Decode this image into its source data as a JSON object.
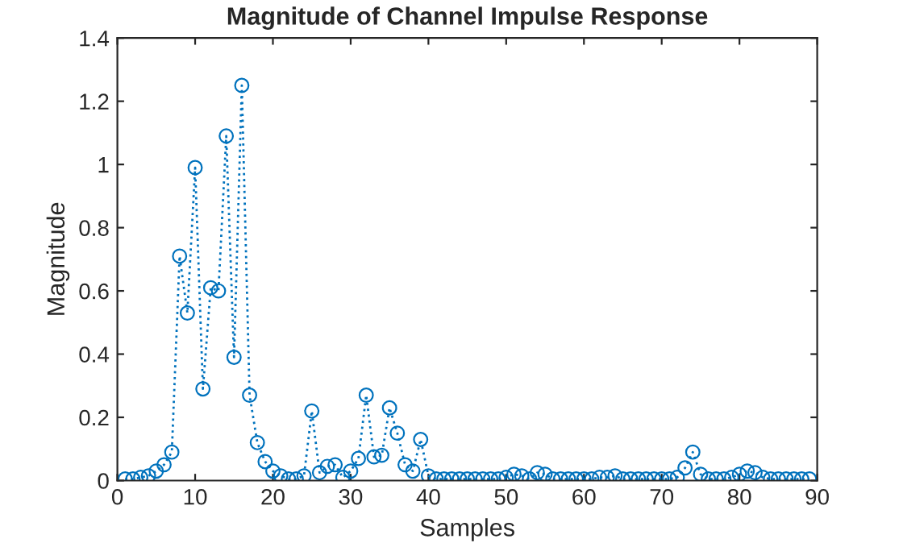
{
  "chart_data": {
    "type": "line",
    "title": "Magnitude of Channel Impulse Response",
    "xlabel": "Samples",
    "ylabel": "Magnitude",
    "x": [
      1,
      2,
      3,
      4,
      5,
      6,
      7,
      8,
      9,
      10,
      11,
      12,
      13,
      14,
      15,
      16,
      17,
      18,
      19,
      20,
      21,
      22,
      23,
      24,
      25,
      26,
      27,
      28,
      29,
      30,
      31,
      32,
      33,
      34,
      35,
      36,
      37,
      38,
      39,
      40,
      41,
      42,
      43,
      44,
      45,
      46,
      47,
      48,
      49,
      50,
      51,
      52,
      53,
      54,
      55,
      56,
      57,
      58,
      59,
      60,
      61,
      62,
      63,
      64,
      65,
      66,
      67,
      68,
      69,
      70,
      71,
      72,
      73,
      74,
      75,
      76,
      77,
      78,
      79,
      80,
      81,
      82,
      83,
      84,
      85,
      86,
      87,
      88,
      89
    ],
    "series": [
      {
        "color": "#0072bd",
        "values": [
          0.005,
          0.005,
          0.01,
          0.015,
          0.03,
          0.05,
          0.09,
          0.71,
          0.53,
          0.99,
          0.29,
          0.61,
          0.6,
          1.09,
          0.39,
          1.25,
          0.27,
          0.12,
          0.06,
          0.03,
          0.015,
          0.005,
          0.005,
          0.015,
          0.22,
          0.025,
          0.045,
          0.05,
          0.01,
          0.03,
          0.07,
          0.27,
          0.075,
          0.08,
          0.23,
          0.15,
          0.05,
          0.03,
          0.13,
          0.015,
          0.005,
          0.005,
          0.005,
          0.005,
          0.005,
          0.005,
          0.005,
          0.005,
          0.005,
          0.01,
          0.02,
          0.015,
          0.005,
          0.025,
          0.02,
          0.005,
          0.005,
          0.005,
          0.005,
          0.005,
          0.005,
          0.01,
          0.01,
          0.015,
          0.005,
          0.005,
          0.005,
          0.005,
          0.005,
          0.005,
          0.005,
          0.01,
          0.04,
          0.09,
          0.02,
          0.005,
          0.005,
          0.005,
          0.01,
          0.02,
          0.03,
          0.025,
          0.01,
          0.005,
          0.005,
          0.005,
          0.005,
          0.005,
          0.005
        ]
      }
    ],
    "xlim": [
      0,
      90
    ],
    "xticks": [
      0,
      10,
      20,
      30,
      40,
      50,
      60,
      70,
      80,
      90
    ],
    "ylim": [
      0,
      1.4
    ],
    "yticks": [
      0,
      0.2,
      0.4,
      0.6,
      0.8,
      1,
      1.2,
      1.4
    ],
    "grid": false,
    "marker": "circle",
    "line_style": "dotted"
  }
}
